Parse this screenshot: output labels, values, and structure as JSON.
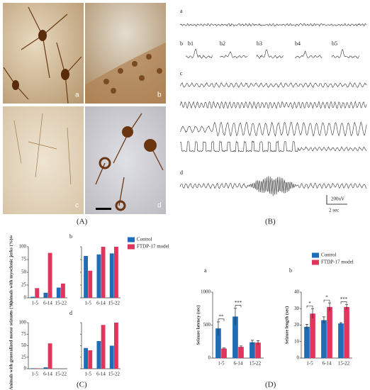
{
  "panel_labels": [
    "(A)",
    "(B)",
    "(C)",
    "(D)"
  ],
  "micrographs": {
    "labels": [
      "a",
      "b",
      "c",
      "d"
    ]
  },
  "eeg": {
    "labels": [
      "a",
      "b",
      "c",
      "d"
    ],
    "sublabels": [
      "b1",
      "b2",
      "b3",
      "b4",
      "b5"
    ],
    "scale_y": "200uV",
    "scale_x": "2 sec"
  },
  "chart_data": [
    {
      "type": "bar",
      "panel": "a",
      "ylabel": "Animals with myoclonic jerks (%)",
      "categories": [
        "1-5",
        "6-14",
        "15-22"
      ],
      "ylim": [
        0,
        100
      ],
      "yticks": [
        0,
        25,
        50,
        75,
        100
      ],
      "series": [
        {
          "name": "Control",
          "color": "#1f6db5",
          "values": [
            2,
            10,
            20
          ]
        },
        {
          "name": "FTDP-17 model",
          "color": "#e0365e",
          "values": [
            19,
            88,
            28
          ]
        }
      ]
    },
    {
      "type": "bar",
      "panel": "b",
      "categories": [
        "1-5",
        "6-14",
        "15-22"
      ],
      "ylim": [
        0,
        100
      ],
      "yticks": [
        0,
        25,
        50,
        75,
        100
      ],
      "series": [
        {
          "color": "#1f6db5",
          "values": [
            82,
            85,
            87
          ]
        },
        {
          "color": "#e0365e",
          "values": [
            53,
            100,
            100
          ]
        }
      ]
    },
    {
      "type": "bar",
      "panel": "c",
      "ylabel": "Animals with generalized motor seizures (%)",
      "categories": [
        "1-5",
        "6-14",
        "15-22"
      ],
      "ylim": [
        0,
        100
      ],
      "yticks": [
        0,
        25,
        50,
        75,
        100
      ],
      "series": [
        {
          "color": "#1f6db5",
          "values": [
            1,
            3,
            0
          ]
        },
        {
          "color": "#e0365e",
          "values": [
            1,
            55,
            0
          ]
        }
      ]
    },
    {
      "type": "bar",
      "panel": "d",
      "categories": [
        "1-5",
        "6-14",
        "15-22"
      ],
      "ylim": [
        0,
        100
      ],
      "yticks": [
        0,
        25,
        50,
        75,
        100
      ],
      "series": [
        {
          "color": "#1f6db5",
          "values": [
            45,
            60,
            50
          ]
        },
        {
          "color": "#e0365e",
          "values": [
            40,
            95,
            100
          ]
        }
      ]
    },
    {
      "type": "bar",
      "panel": "a",
      "ylabel": "Seizure latency (sec)",
      "categories": [
        "1-5",
        "6-14",
        "15-22"
      ],
      "ylim": [
        0,
        1000
      ],
      "yticks": [
        0,
        500,
        1000
      ],
      "annotations": [
        "**",
        "***"
      ],
      "series": [
        {
          "name": "Control",
          "color": "#1f6db5",
          "values": [
            450,
            630,
            240
          ],
          "errors": [
            100,
            130,
            30
          ]
        },
        {
          "name": "FTDP-17 model",
          "color": "#e0365e",
          "values": [
            145,
            170,
            235
          ],
          "errors": [
            10,
            15,
            30
          ]
        }
      ]
    },
    {
      "type": "bar",
      "panel": "b",
      "ylabel": "Seizure length (sec)",
      "categories": [
        "1-5",
        "6-14",
        "15-22"
      ],
      "ylim": [
        0,
        40
      ],
      "yticks": [
        0,
        10,
        20,
        30,
        40
      ],
      "annotations": [
        "*",
        "*",
        "***"
      ],
      "series": [
        {
          "color": "#1f6db5",
          "values": [
            19,
            23,
            21
          ],
          "errors": [
            1.5,
            2,
            0.5
          ]
        },
        {
          "color": "#e0365e",
          "values": [
            27,
            31,
            31
          ],
          "errors": [
            3,
            2.5,
            1.5
          ]
        }
      ]
    }
  ]
}
